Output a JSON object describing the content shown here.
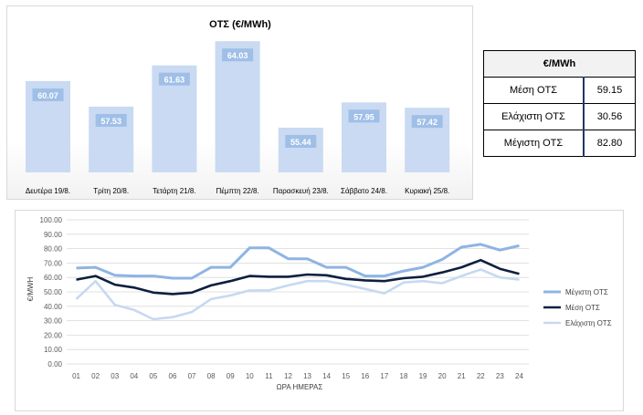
{
  "bar_chart": {
    "title": "ΟΤΣ (€/MWh)"
  },
  "stats": {
    "header": "€/MWh",
    "rows": [
      {
        "label": "Μέση ΟΤΣ",
        "value": "59.15"
      },
      {
        "label": "Ελάχιστη ΟΤΣ",
        "value": "30.56"
      },
      {
        "label": "Μέγιστη ΟΤΣ",
        "value": "82.80"
      }
    ]
  },
  "colors": {
    "bar": "#c9daf2",
    "bar_label_bg": "#9fbfe7",
    "max_line": "#8eb4e3",
    "avg_line": "#0d1f3f",
    "min_line": "#c6d9f1",
    "table_border_accent": "#1f3864"
  },
  "chart_data": [
    {
      "type": "bar",
      "title": "ΟΤΣ (€/MWh)",
      "categories": [
        "Δευτέρα 19/8.",
        "Τρίτη 20/8.",
        "Τετάρτη 21/8.",
        "Πέμπτη 22/8.",
        "Παρασκευή 23/8.",
        "Σάββατο 24/8.",
        "Κυριακή 25/8."
      ],
      "values": [
        60.07,
        57.53,
        61.63,
        64.03,
        55.44,
        57.95,
        57.42
      ],
      "value_labels": [
        "60.07",
        "57.53",
        "61.63",
        "64.03",
        "55.44",
        "57.95",
        "57.42"
      ],
      "ylim": [
        51,
        64.5
      ],
      "grid": false
    },
    {
      "type": "line",
      "xlabel": "ΩΡΑ ΗΜΕΡΑΣ",
      "ylabel": "€/MWH",
      "ylim": [
        0,
        100
      ],
      "yticks": [
        "0.00",
        "10.00",
        "20.00",
        "30.00",
        "40.00",
        "50.00",
        "60.00",
        "70.00",
        "80.00",
        "90.00",
        "100.00"
      ],
      "x": [
        "01",
        "02",
        "03",
        "04",
        "05",
        "06",
        "07",
        "08",
        "09",
        "10",
        "11",
        "12",
        "13",
        "14",
        "15",
        "16",
        "17",
        "18",
        "19",
        "20",
        "21",
        "22",
        "23",
        "24"
      ],
      "legend_position": "right",
      "grid": true,
      "series": [
        {
          "name": "Μέγιστη ΟΤΣ",
          "values": [
            66.5,
            67,
            61.5,
            61,
            61,
            59.5,
            59.5,
            67,
            67,
            80.5,
            80.5,
            73,
            73,
            67,
            67,
            61,
            61,
            64.5,
            67,
            72.5,
            81,
            83,
            79,
            82
          ]
        },
        {
          "name": "Μέση ΟΤΣ",
          "values": [
            58.5,
            61,
            55,
            53,
            49.5,
            48.5,
            49.5,
            54.5,
            57.5,
            61,
            60.5,
            60.5,
            62,
            61.5,
            59,
            58,
            57.5,
            59.5,
            60.5,
            63.5,
            67,
            72,
            66,
            62.5
          ]
        },
        {
          "name": "Ελάχιστη ΟΤΣ",
          "values": [
            45,
            57.5,
            41,
            37.5,
            31,
            32.5,
            36,
            45,
            47.5,
            51,
            51,
            54.5,
            57.5,
            57.5,
            55,
            52,
            49,
            56.5,
            57.5,
            56,
            61,
            65.5,
            60,
            58.5
          ]
        }
      ]
    }
  ]
}
